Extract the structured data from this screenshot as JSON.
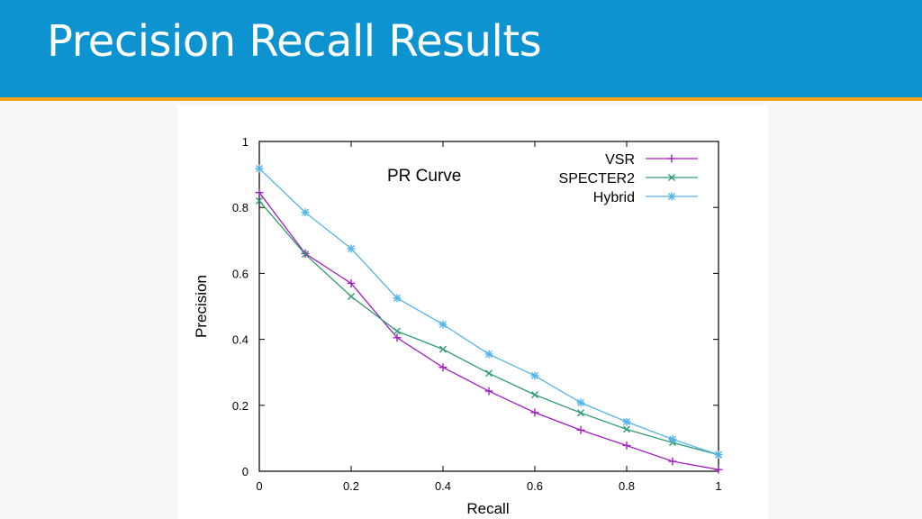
{
  "slide": {
    "title": "Precision Recall Results"
  },
  "colors": {
    "header_bg": "#0d93cf",
    "header_rule": "#f2a31b",
    "slide_bg": "#f7f7f7"
  },
  "chart_data": {
    "type": "line",
    "title": "PR Curve",
    "xlabel": "Recall",
    "ylabel": "Precision",
    "xlim": [
      0,
      1
    ],
    "ylim": [
      0,
      1
    ],
    "xticks": [
      "0",
      "0.2",
      "0.4",
      "0.6",
      "0.8",
      "1"
    ],
    "yticks": [
      "0",
      "0.2",
      "0.4",
      "0.6",
      "0.8",
      "1"
    ],
    "grid": false,
    "legend_position": "top-right",
    "x": [
      0,
      0.1,
      0.2,
      0.3,
      0.4,
      0.5,
      0.6,
      0.7,
      0.8,
      0.9,
      1.0
    ],
    "series": [
      {
        "name": "VSR",
        "color": "#a020c0",
        "marker": "plus",
        "values": [
          0.845,
          0.66,
          0.57,
          0.405,
          0.315,
          0.243,
          0.178,
          0.125,
          0.078,
          0.03,
          0.005
        ]
      },
      {
        "name": "SPECTER2",
        "color": "#2e9b72",
        "marker": "cross",
        "values": [
          0.82,
          0.658,
          0.53,
          0.425,
          0.37,
          0.297,
          0.232,
          0.177,
          0.127,
          0.087,
          0.05
        ]
      },
      {
        "name": "Hybrid",
        "color": "#56b4e9",
        "marker": "star",
        "values": [
          0.918,
          0.785,
          0.675,
          0.525,
          0.445,
          0.355,
          0.29,
          0.208,
          0.15,
          0.097,
          0.05
        ]
      }
    ]
  }
}
